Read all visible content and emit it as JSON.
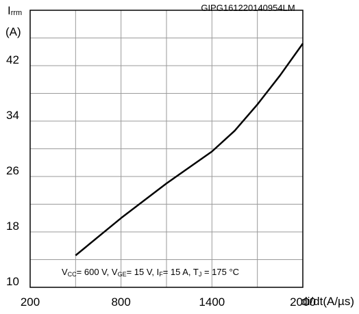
{
  "chart_data": {
    "type": "line",
    "figure_id": "GIPG161220140954LM",
    "ylabel_symbol": "I",
    "ylabel_subscript": "rrm",
    "ylabel_unit": "(A)",
    "xlabel": "di/dt(A/µs)",
    "xlim": [
      200,
      2000
    ],
    "ylim": [
      10,
      50
    ],
    "x_major_ticks": [
      200,
      800,
      1400,
      2000
    ],
    "x_minor_ticks": [
      500,
      1100,
      1700
    ],
    "y_major_ticks": [
      10,
      18,
      26,
      34,
      42
    ],
    "y_minor_ticks": [
      14,
      22,
      30,
      38,
      46
    ],
    "y_tick_labels": [
      "10",
      "18",
      "26",
      "34",
      "42"
    ],
    "x_tick_labels": [
      "200",
      "800",
      "1400",
      "2000"
    ],
    "grid": true,
    "conditions": {
      "vcc_label": "V",
      "vcc_sub": "CC",
      "vcc_value": "= 600 V, ",
      "vge_label": "V",
      "vge_sub": "GE",
      "vge_value": "= 15 V, ",
      "if_label": "I",
      "if_sub": "F",
      "if_value": "= 15 A, ",
      "tj_label": "T",
      "tj_sub": "J",
      "tj_value": " = 175 °C"
    },
    "series": [
      {
        "x": [
          500,
          800,
          1100,
          1400,
          1550,
          1700,
          1850,
          2000
        ],
        "y": [
          14.6,
          20.0,
          25.0,
          29.6,
          32.6,
          36.4,
          40.6,
          45.2
        ]
      }
    ]
  }
}
